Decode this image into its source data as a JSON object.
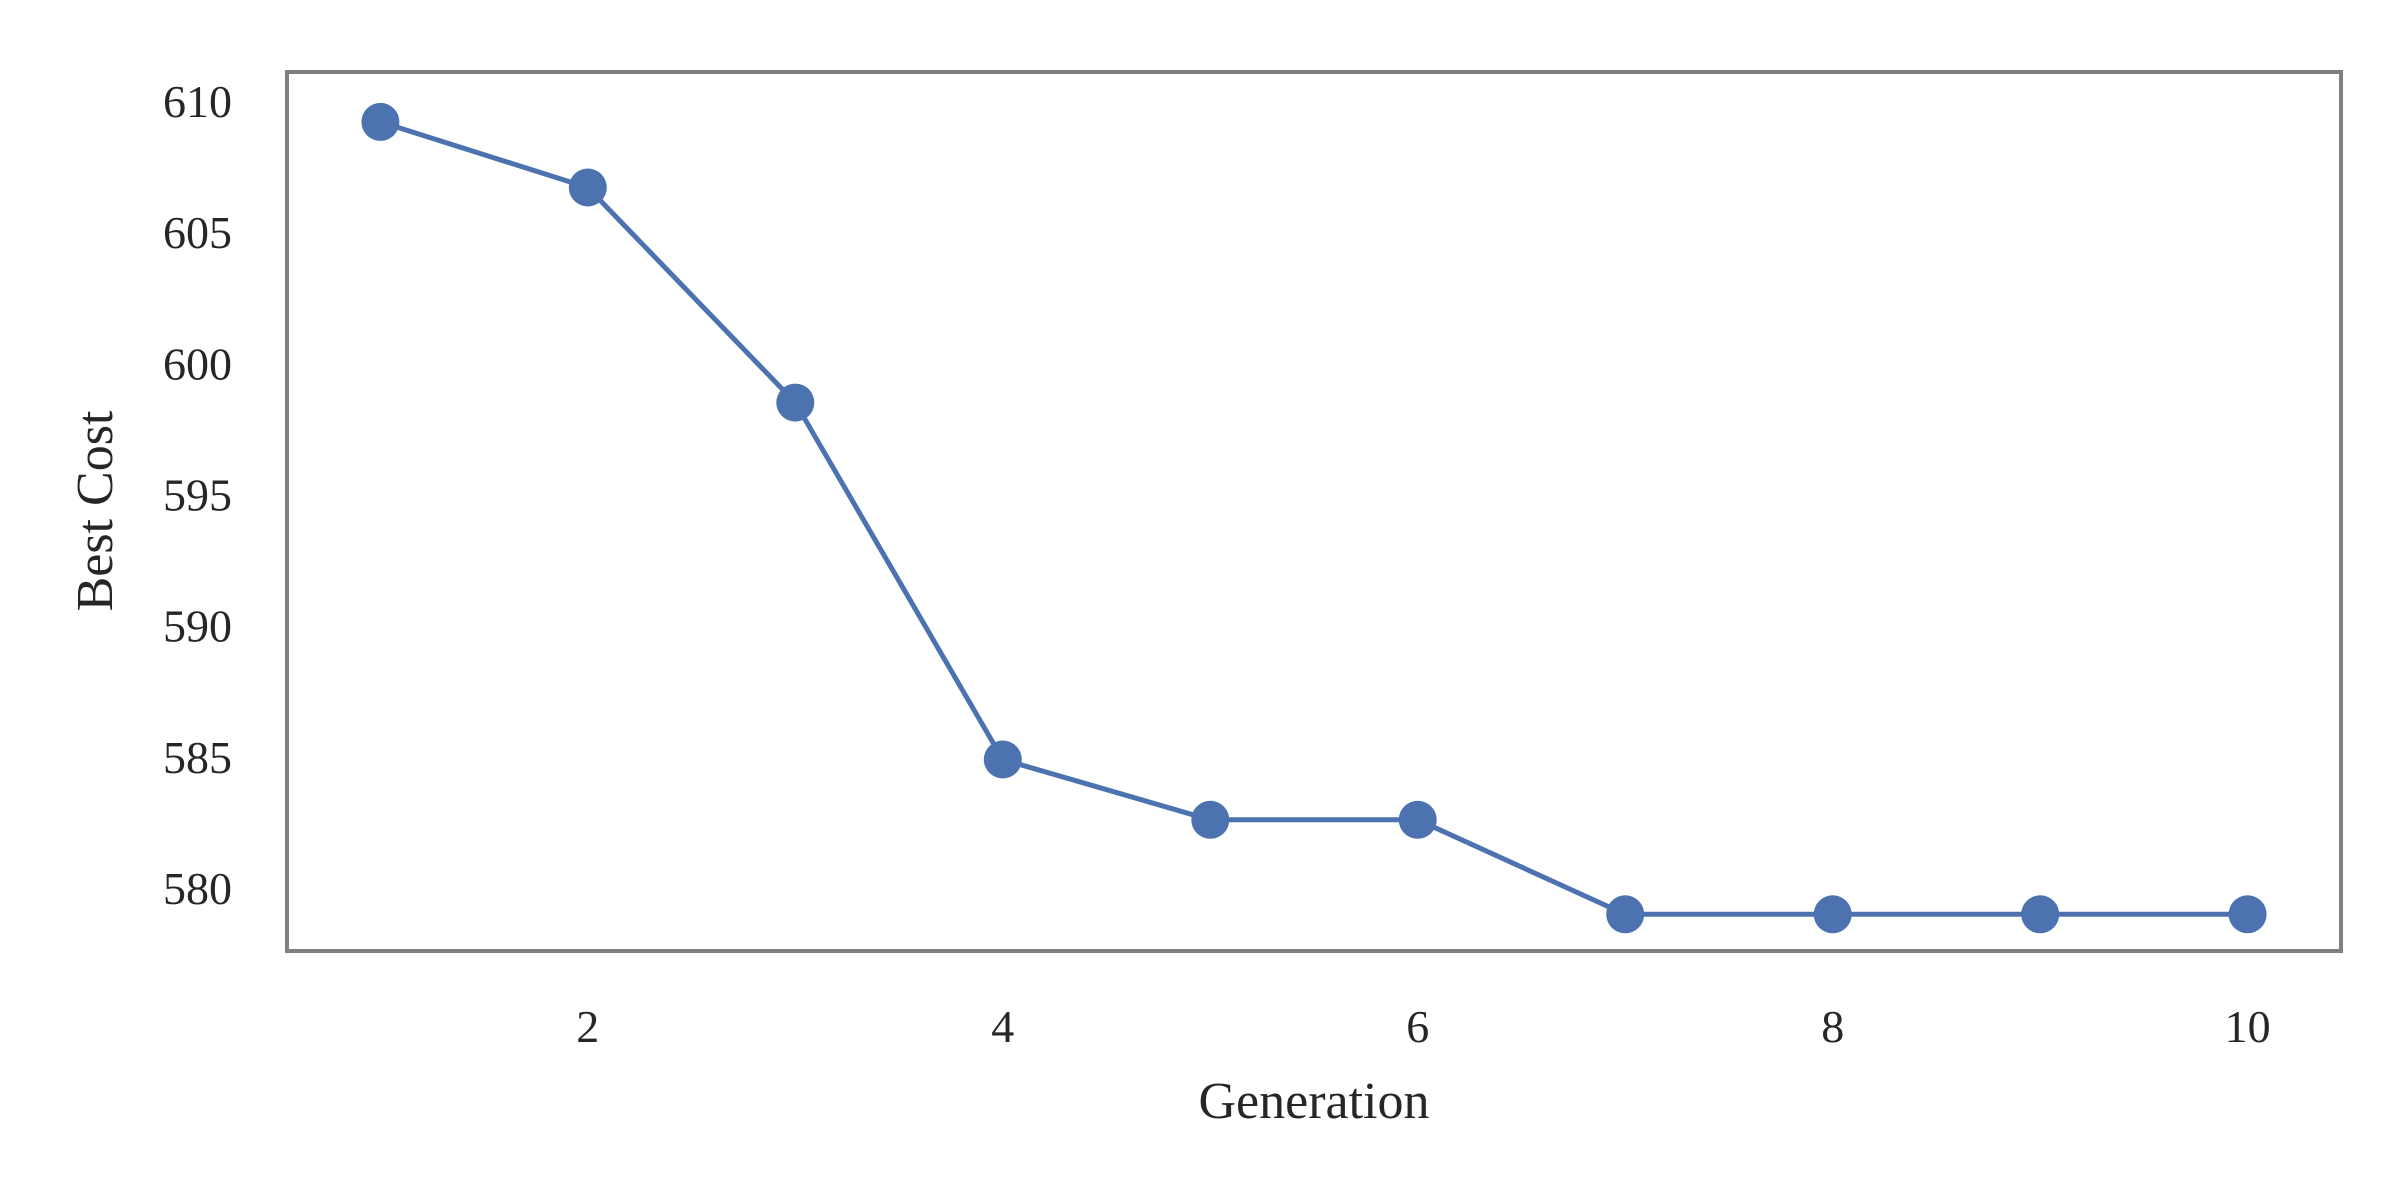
{
  "chart_data": {
    "type": "line",
    "title": "",
    "xlabel": "Generation",
    "ylabel": "Best Cost",
    "x": [
      1,
      2,
      3,
      4,
      5,
      6,
      7,
      8,
      9,
      10
    ],
    "series": [
      {
        "values": [
          609.2,
          606.7,
          598.5,
          584.9,
          582.6,
          582.6,
          579.0,
          579.0,
          579.0,
          579.0
        ]
      }
    ],
    "xlim": [
      0.55,
      10.45
    ],
    "ylim": [
      577.6,
      611.1
    ],
    "xticks": [
      2,
      4,
      6,
      8,
      10
    ],
    "xtick_labels": [
      "2",
      "4",
      "6",
      "8",
      "10"
    ],
    "yticks": [
      580,
      585,
      590,
      595,
      600,
      605,
      610
    ],
    "ytick_labels": [
      "580",
      "585",
      "590",
      "595",
      "600",
      "605",
      "610"
    ],
    "grid": false,
    "legend": false,
    "colors": {
      "line": "#4c72b0",
      "frame": "#808080",
      "text": "#262626"
    }
  }
}
